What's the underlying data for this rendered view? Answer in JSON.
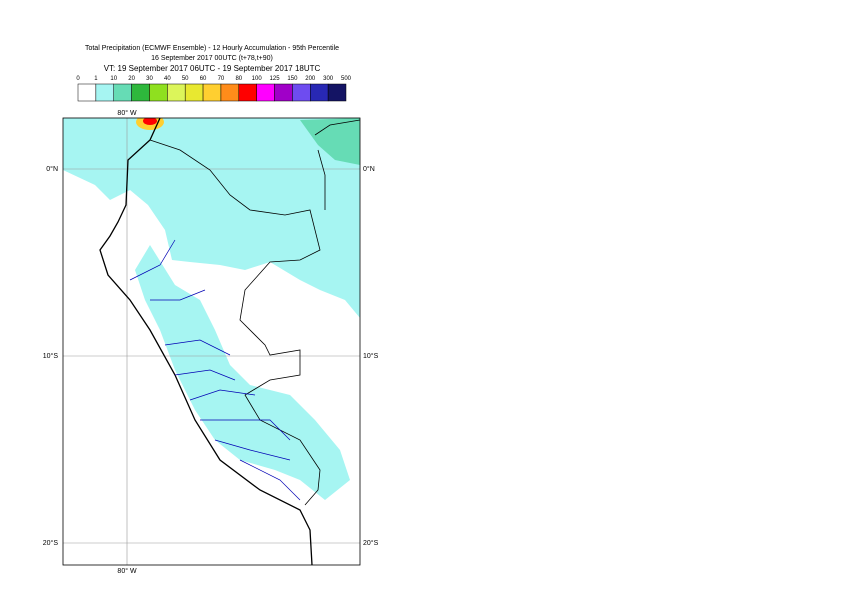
{
  "header": {
    "title_lines": [
      "Total Precipitation (ECMWF Ensemble) - 12 Hourly Accumulation - 95th Percentile",
      "16 September 2017 00UTC (t+78,t+90)",
      "VT: 19 September 2017 06UTC - 19 September 2017 18UTC"
    ]
  },
  "colorbar": {
    "labels": [
      "0",
      "1",
      "10",
      "20",
      "30",
      "40",
      "50",
      "60",
      "70",
      "80",
      "100",
      "125",
      "150",
      "200",
      "300",
      "500"
    ],
    "colors": [
      "#ffffff",
      "#a6f5f2",
      "#66dcb5",
      "#2eb83c",
      "#8fe01f",
      "#dcf55a",
      "#e8e830",
      "#ffcf30",
      "#ff8c1a",
      "#ff0000",
      "#ff00ff",
      "#a000c8",
      "#6e4cf0",
      "#2828b4",
      "#141464"
    ]
  },
  "map": {
    "lat_labels": [
      "0°N",
      "10°S",
      "20°S"
    ],
    "lon_labels": [
      "80° W"
    ]
  }
}
